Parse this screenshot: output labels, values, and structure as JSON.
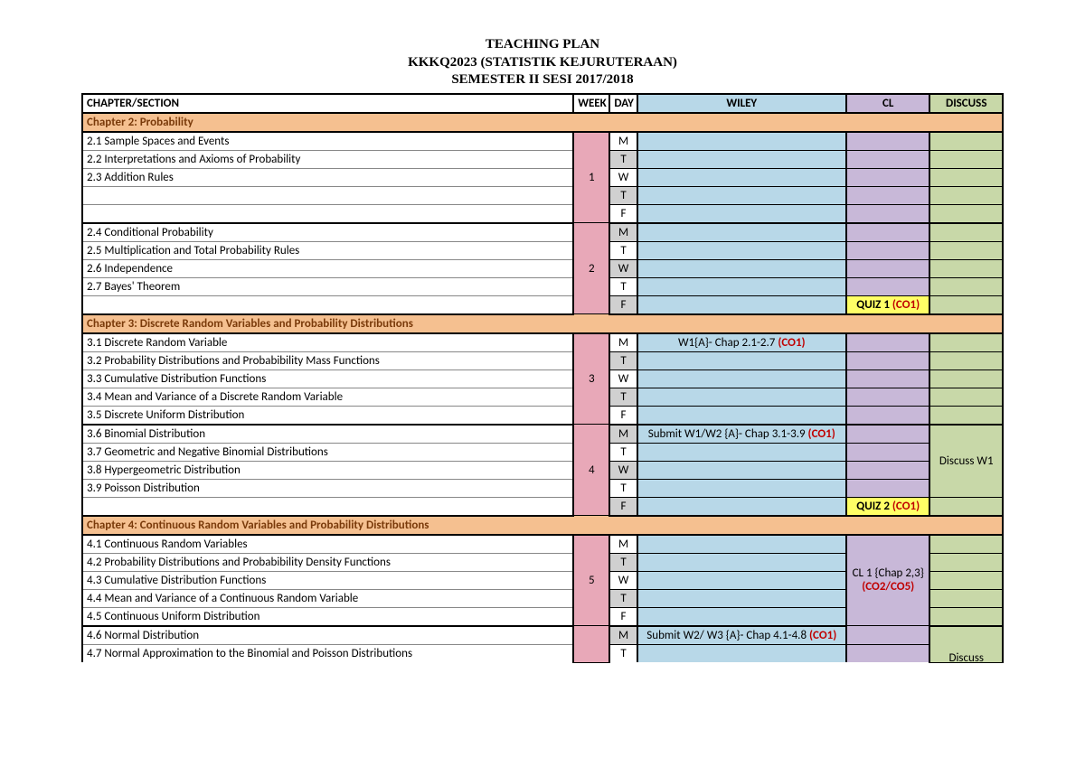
{
  "titles": {
    "line1": "TEACHING PLAN",
    "line2": "KKKQ2023 (STATISTIK KEJURUTERAAN)",
    "line3": "SEMESTER II SESI 2017/2018"
  },
  "colors": {
    "chapter_bg": "#f5c090",
    "chapter_fg": "#7a3a0a",
    "week_bg": "#e8a8b8",
    "wiley_bg": "#b8d8e8",
    "cl_bg": "#c8b8d8",
    "discuss_bg": "#c8d8a8",
    "shade_bg": "#d0d0d0",
    "co_red": "#c00000"
  },
  "headers": {
    "section": "CHAPTER/SECTION",
    "week": "WEEK",
    "day": "DAY",
    "wiley": "WILEY",
    "cl": "CL",
    "discuss": "DISCUSS"
  },
  "days": [
    "M",
    "T",
    "W",
    "T",
    "F"
  ],
  "chapters": {
    "ch2": "Chapter 2: Probability",
    "ch3": "Chapter 3: Discrete Random Variables and Probability Distributions",
    "ch4": "Chapter 4: Continuous Random Variables and Probability Distributions"
  },
  "sections": {
    "s21": "2.1 Sample Spaces and Events",
    "s22": "2.2 Interpretations and Axioms of Probability",
    "s23": "2.3 Addition Rules",
    "s24": "2.4 Conditional Probability",
    "s25": "2.5 Multiplication and Total Probability Rules",
    "s26": "2.6 Independence",
    "s27": "2.7 Bayes' Theorem",
    "s31": "3.1 Discrete Random Variable",
    "s32": "3.2 Probability Distributions and Probabibility Mass Functions",
    "s33": "3.3 Cumulative Distribution Functions",
    "s34": "3.4 Mean and Variance of a Discrete Random Variable",
    "s35": "3.5 Discrete Uniform Distribution",
    "s36": "3.6 Binomial Distribution",
    "s37": "3.7 Geometric and Negative Binomial Distributions",
    "s38": "3.8 Hypergeometric Distribution",
    "s39": "3.9 Poisson Distribution",
    "s41": "4.1 Continuous Random Variables",
    "s42": "4.2 Probability Distributions and Probabibility Density Functions",
    "s43": "4.3 Cumulative Distribution Functions",
    "s44": "4.4 Mean and Variance of a Continuous Random Variable",
    "s45": "4.5 Continuous Uniform Distribution",
    "s46": "4.6 Normal Distribution",
    "s47": "4.7 Normal Approximation to the Binomial and Poisson Distributions"
  },
  "weeks": {
    "w1": "1",
    "w2": "2",
    "w3": "3",
    "w4": "4",
    "w5": "5"
  },
  "wiley": {
    "w3m_a": "W1{A}- Chap 2.1-2.7 ",
    "w3m_b": "(CO1)",
    "w4m_a": "Submit W1/W2 {A}- Chap 3.1-3.9 ",
    "w4m_b": "(CO1)",
    "w6m_a": "Submit W2/ W3 {A}- Chap 4.1-4.8 ",
    "w6m_b": "(CO1)"
  },
  "cl": {
    "q1a": "QUIZ 1 ",
    "q1b": "(CO1)",
    "q2a": "QUIZ 2 ",
    "q2b": "(CO1)",
    "cl1a": "CL 1 {Chap 2,3}",
    "cl1b": "(CO2/CO5)"
  },
  "discuss": {
    "d4": "Discuss W1",
    "d6": "Discuss"
  }
}
